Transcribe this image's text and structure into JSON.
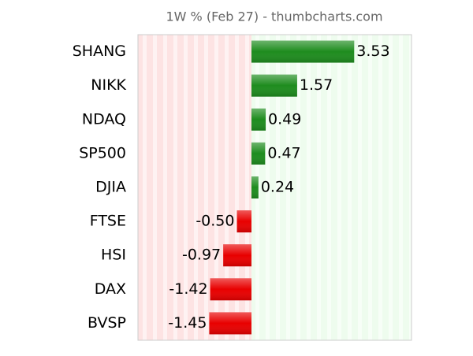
{
  "chart_data": {
    "type": "bar",
    "orientation": "horizontal",
    "title": "1W % (Feb 27) - thumbcharts.com",
    "categories": [
      "SHANG",
      "NIKK",
      "NDAQ",
      "SP500",
      "DJIA",
      "FTSE",
      "HSI",
      "DAX",
      "BVSP"
    ],
    "values": [
      3.53,
      1.57,
      0.49,
      0.47,
      0.24,
      -0.5,
      -0.97,
      -1.42,
      -1.45
    ],
    "value_labels": [
      "3.53",
      "1.57",
      "0.49",
      "0.47",
      "0.24",
      "-0.50",
      "-0.97",
      "-1.42",
      "-1.45"
    ],
    "positive_color": "#1e8c1e",
    "negative_color": "#e80000",
    "xlim": [
      -3.9,
      5.5
    ]
  }
}
